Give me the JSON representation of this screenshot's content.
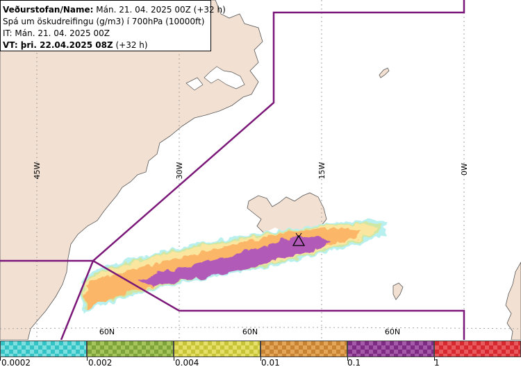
{
  "header": {
    "line1_label": "Veðurstofan/Name:",
    "line1_value": "Mán. 21. 04. 2025 00Z (+32 h)",
    "line2": "Spá um öskudreifingu (g/m3) í 700hPa (10000ft)",
    "line3": "IT: Mán. 21. 04. 2025 00Z",
    "line4_label": "VT: þri. 22.04.2025 08Z",
    "line4_value": "(+32 h)"
  },
  "map": {
    "meridian_labels": [
      "45W",
      "30W",
      "15W",
      "0W"
    ],
    "parallel_labels": [
      "60N",
      "60N",
      "60N"
    ],
    "colors": {
      "land": "#f2e0d2",
      "sea": "#ffffff",
      "coast": "#555555",
      "boundary": "#7b1779",
      "grid": "#9a9a9a"
    },
    "ash_colors": {
      "level_0002": "#b8f0f0",
      "level_002": "#cfe7a3",
      "level_004": "#fbe6a0",
      "level_01": "#fbb668",
      "level_1": "#b15ab8"
    },
    "volcano_icon": "triangle-volcano-icon"
  },
  "legend": {
    "labels": [
      "0.0002",
      "0.002",
      "0.004",
      "0.01",
      "0.1",
      "1"
    ],
    "colors": [
      "#33c3c5",
      "#7da33a",
      "#c8c439",
      "#c78232",
      "#7e2c83",
      "#d5292f"
    ],
    "colors_alt": [
      "#7edfe0",
      "#a6c55a",
      "#e5e068",
      "#e4a75a",
      "#a45aa8",
      "#e85a5d"
    ]
  }
}
